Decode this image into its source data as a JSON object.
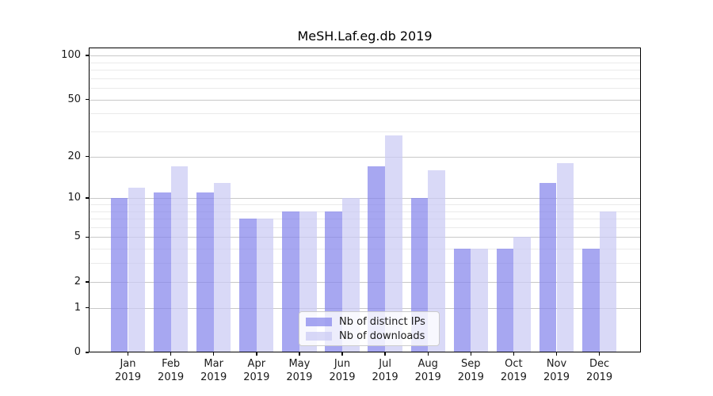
{
  "title": "MeSH.Laf.eg.db 2019",
  "chart_data": {
    "type": "bar",
    "title": "MeSH.Laf.eg.db 2019",
    "categories": [
      "Jan 2019",
      "Feb 2019",
      "Mar 2019",
      "Apr 2019",
      "May 2019",
      "Jun 2019",
      "Jul 2019",
      "Aug 2019",
      "Sep 2019",
      "Oct 2019",
      "Nov 2019",
      "Dec 2019"
    ],
    "series": [
      {
        "key": "ips",
        "name": "Nb of distinct IPs",
        "values": [
          10,
          11,
          11,
          7,
          8,
          8,
          17,
          10,
          4,
          4,
          13,
          4
        ],
        "color": "#a7a7f0",
        "fill": "rgba(133,133,235,0.72)"
      },
      {
        "key": "downloads",
        "name": "Nb of downloads",
        "values": [
          12,
          17,
          13,
          7,
          8,
          10,
          28,
          16,
          4,
          5,
          18,
          8
        ],
        "color": "#d9d9f7",
        "fill": "rgba(202,202,244,0.72)"
      }
    ],
    "xlabel": "",
    "ylabel": "",
    "yscale": "log1p",
    "ylim": [
      0,
      113
    ],
    "y_ticks": [
      0,
      1,
      2,
      5,
      10,
      20,
      50,
      100
    ],
    "gridlines": {
      "major": [
        1,
        2,
        5,
        10,
        20,
        50,
        100
      ],
      "minor": [
        3,
        4,
        6,
        7,
        8,
        9,
        30,
        40,
        60,
        70,
        80,
        90
      ]
    },
    "grid": true,
    "legend_position": "lower center",
    "colors": {
      "grid_major": "#c8c8c8",
      "grid_minor": "#eaeaea",
      "axis": "#000000",
      "text": "#1a1a1a",
      "background": "#ffffff"
    }
  }
}
